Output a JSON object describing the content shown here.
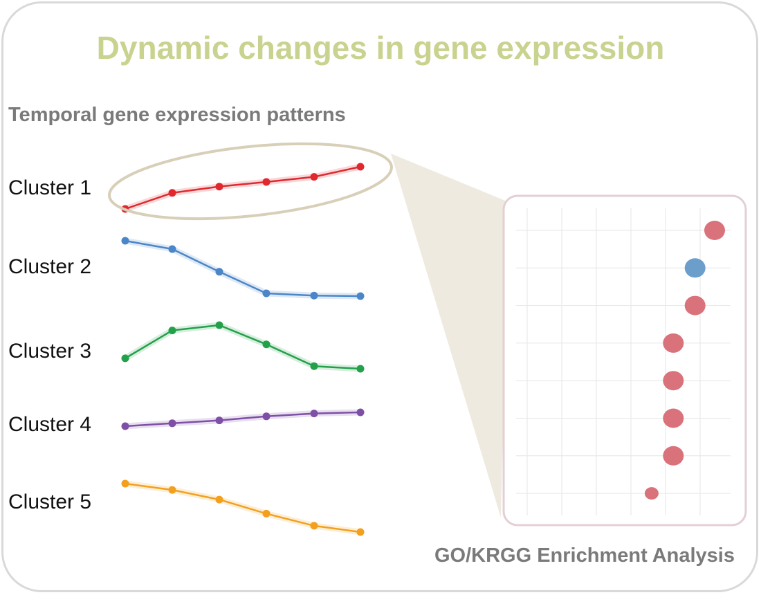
{
  "title": "Dynamic changes in gene expression",
  "patterns_heading": "Temporal gene expression patterns",
  "enrichment_heading": "GO/KRGG Enrichment Analysis",
  "clusters": [
    {
      "label": "Cluster 1",
      "color": "#e0282e",
      "trend": "increasing",
      "levels": [
        0.0,
        0.38,
        0.53,
        0.64,
        0.76,
        1.0
      ]
    },
    {
      "label": "Cluster 2",
      "color": "#4a86c8",
      "trend": "decreasing then flat",
      "levels": [
        1.0,
        0.85,
        0.44,
        0.05,
        0.01,
        0.0
      ]
    },
    {
      "label": "Cluster 3",
      "color": "#23a04a",
      "trend": "rise then fall",
      "levels": [
        0.24,
        0.88,
        1.0,
        0.56,
        0.06,
        0.0
      ]
    },
    {
      "label": "Cluster 4",
      "color": "#7e4fa6",
      "trend": "slightly increasing",
      "levels": [
        0.0,
        0.21,
        0.42,
        0.71,
        0.92,
        1.0
      ]
    },
    {
      "label": "Cluster 5",
      "color": "#f2a01e",
      "trend": "decreasing",
      "levels": [
        1.0,
        0.87,
        0.67,
        0.38,
        0.13,
        0.0
      ]
    }
  ],
  "highlighted_cluster": "Cluster 1",
  "colors": {
    "title": "#c9d28e",
    "heading": "#7a7a7a",
    "highlight_ellipse": "#d8cfb8",
    "zoom_wedge": "#efeae0",
    "enrichment_frame": "#e3cfd4",
    "dot_up": "#d9727a",
    "dot_down": "#6c9ecb",
    "grid": "#e6e6e6"
  },
  "enrichment_dots": [
    {
      "row": 1,
      "x_level": 1.0,
      "size": "large",
      "direction": "up"
    },
    {
      "row": 2,
      "x_level": 0.82,
      "size": "large",
      "direction": "down"
    },
    {
      "row": 3,
      "x_level": 0.82,
      "size": "large",
      "direction": "up"
    },
    {
      "row": 4,
      "x_level": 0.62,
      "size": "large",
      "direction": "up"
    },
    {
      "row": 5,
      "x_level": 0.62,
      "size": "large",
      "direction": "up"
    },
    {
      "row": 6,
      "x_level": 0.62,
      "size": "large",
      "direction": "up"
    },
    {
      "row": 7,
      "x_level": 0.62,
      "size": "large",
      "direction": "up"
    },
    {
      "row": 8,
      "x_level": 0.42,
      "size": "small",
      "direction": "up"
    }
  ]
}
